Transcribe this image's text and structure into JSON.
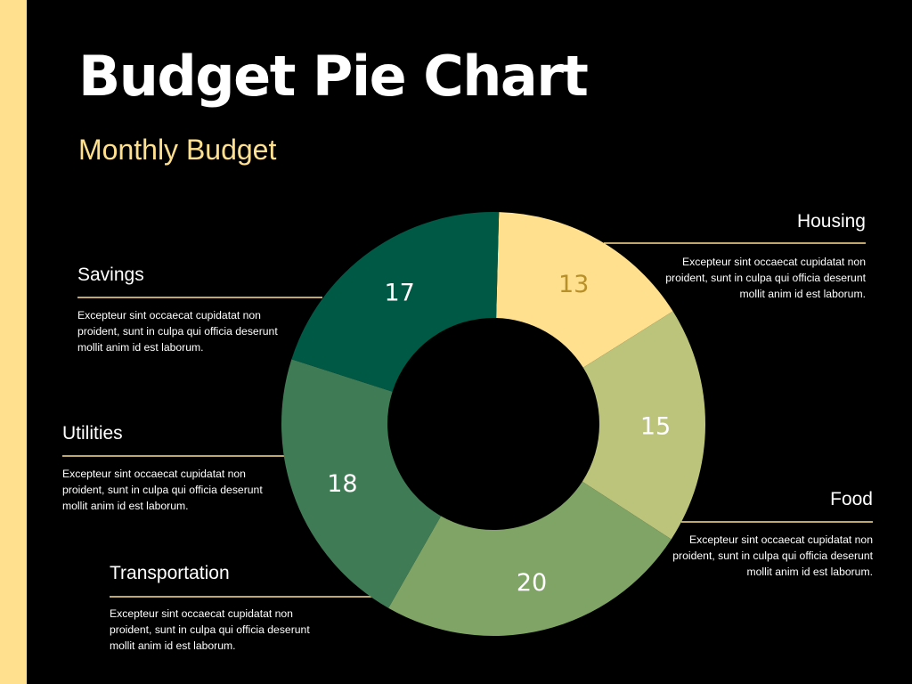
{
  "page": {
    "title": "Budget Pie Chart",
    "subtitle": "Monthly Budget"
  },
  "colors": {
    "background": "#000000",
    "accent": "#FFE08F",
    "text": "#FFFFFF"
  },
  "chart_data": {
    "type": "pie",
    "style": "donut",
    "title": "Budget Pie Chart",
    "subtitle": "Monthly Budget",
    "categories": [
      "Housing",
      "Food",
      "Transportation",
      "Utilities",
      "Savings"
    ],
    "values": [
      13,
      15,
      20,
      18,
      17
    ],
    "colors": [
      "#FFE08F",
      "#BCC47C",
      "#7FA465",
      "#3F7C56",
      "#005945"
    ],
    "label_colors": [
      "#B8902A",
      "#FFFFFF",
      "#FFFFFF",
      "#FFFFFF",
      "#FFFFFF"
    ],
    "legend": [
      {
        "name": "Housing",
        "description": "Excepteur sint occaecat cupidatat non proident, sunt in culpa qui officia deserunt mollit anim id est laborum."
      },
      {
        "name": "Food",
        "description": "Excepteur sint occaecat cupidatat non proident, sunt in culpa qui officia deserunt mollit anim id est laborum."
      },
      {
        "name": "Transportation",
        "description": "Excepteur sint occaecat cupidatat non proident, sunt in culpa qui officia deserunt mollit anim id est laborum."
      },
      {
        "name": "Utilities",
        "description": "Excepteur sint occaecat cupidatat non proident, sunt in culpa qui officia deserunt mollit anim id est laborum."
      },
      {
        "name": "Savings",
        "description": "Excepteur sint occaecat cupidatat non proident, sunt in culpa qui officia deserunt mollit anim id est laborum."
      }
    ]
  }
}
